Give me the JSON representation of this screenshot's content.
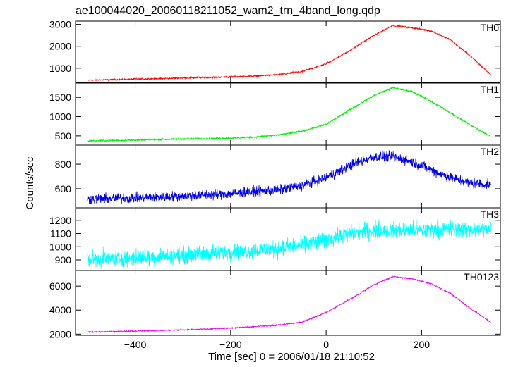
{
  "title": "ae100044020_20060118211052_wam2_trn_4band_long.qdp",
  "xlabel": "Time [sec] 0 = 2006/01/18 21:10:52",
  "ylabel": "Counts/sec",
  "chart_data": {
    "type": "line",
    "title": "ae100044020_20060118211052_wam2_trn_4band_long.qdp",
    "xlabel": "Time [sec] 0 = 2006/01/18 21:10:52",
    "ylabel": "Counts/sec",
    "xlim": [
      -525,
      365
    ],
    "x_ticks": [
      -400,
      -200,
      0,
      200
    ],
    "x_range_data": [
      -500,
      345
    ],
    "grid": false,
    "panels": [
      {
        "name": "TH0",
        "color": "#ff0000",
        "ylim": [
          350,
          3150
        ],
        "y_ticks": [
          1000,
          2000,
          3000
        ],
        "points": [
          [
            -500,
            450
          ],
          [
            -400,
            500
          ],
          [
            -300,
            550
          ],
          [
            -200,
            600
          ],
          [
            -150,
            640
          ],
          [
            -100,
            700
          ],
          [
            -50,
            850
          ],
          [
            0,
            1200
          ],
          [
            50,
            1800
          ],
          [
            100,
            2500
          ],
          [
            140,
            2950
          ],
          [
            180,
            2850
          ],
          [
            220,
            2700
          ],
          [
            260,
            2300
          ],
          [
            300,
            1600
          ],
          [
            345,
            700
          ]
        ],
        "noise": 40
      },
      {
        "name": "TH1",
        "color": "#00ee00",
        "ylim": [
          260,
          1870
        ],
        "y_ticks": [
          500,
          1000,
          1500
        ],
        "points": [
          [
            -500,
            370
          ],
          [
            -400,
            390
          ],
          [
            -300,
            420
          ],
          [
            -200,
            440
          ],
          [
            -150,
            470
          ],
          [
            -100,
            520
          ],
          [
            -50,
            620
          ],
          [
            0,
            800
          ],
          [
            50,
            1180
          ],
          [
            100,
            1550
          ],
          [
            140,
            1750
          ],
          [
            180,
            1650
          ],
          [
            220,
            1400
          ],
          [
            260,
            1100
          ],
          [
            300,
            800
          ],
          [
            345,
            480
          ]
        ],
        "noise": 25
      },
      {
        "name": "TH2",
        "color": "#0000ee",
        "ylim": [
          445,
          955
        ],
        "y_ticks": [
          600,
          800
        ],
        "points": [
          [
            -500,
            515
          ],
          [
            -400,
            525
          ],
          [
            -300,
            540
          ],
          [
            -200,
            560
          ],
          [
            -100,
            590
          ],
          [
            -50,
            625
          ],
          [
            0,
            690
          ],
          [
            50,
            790
          ],
          [
            100,
            860
          ],
          [
            140,
            860
          ],
          [
            180,
            820
          ],
          [
            220,
            755
          ],
          [
            260,
            690
          ],
          [
            300,
            650
          ],
          [
            345,
            630
          ]
        ],
        "noise": 45
      },
      {
        "name": "TH3",
        "color": "#00ffff",
        "ylim": [
          820,
          1295
        ],
        "y_ticks": [
          900,
          1000,
          1100,
          1200
        ],
        "points": [
          [
            -500,
            905
          ],
          [
            -400,
            915
          ],
          [
            -300,
            935
          ],
          [
            -200,
            960
          ],
          [
            -100,
            985
          ],
          [
            -50,
            1015
          ],
          [
            0,
            1050
          ],
          [
            50,
            1100
          ],
          [
            100,
            1125
          ],
          [
            150,
            1125
          ],
          [
            200,
            1125
          ],
          [
            250,
            1130
          ],
          [
            300,
            1130
          ],
          [
            345,
            1125
          ]
        ],
        "noise": 70
      },
      {
        "name": "TH0123",
        "color": "#ee00ee",
        "ylim": [
          1900,
          7300
        ],
        "y_ticks": [
          2000,
          4000,
          6000
        ],
        "points": [
          [
            -500,
            2180
          ],
          [
            -400,
            2250
          ],
          [
            -300,
            2350
          ],
          [
            -200,
            2500
          ],
          [
            -100,
            2750
          ],
          [
            -50,
            3000
          ],
          [
            0,
            3800
          ],
          [
            50,
            4900
          ],
          [
            100,
            6100
          ],
          [
            140,
            6800
          ],
          [
            180,
            6600
          ],
          [
            220,
            6200
          ],
          [
            260,
            5400
          ],
          [
            300,
            4200
          ],
          [
            345,
            3000
          ]
        ],
        "noise": 60
      }
    ]
  }
}
